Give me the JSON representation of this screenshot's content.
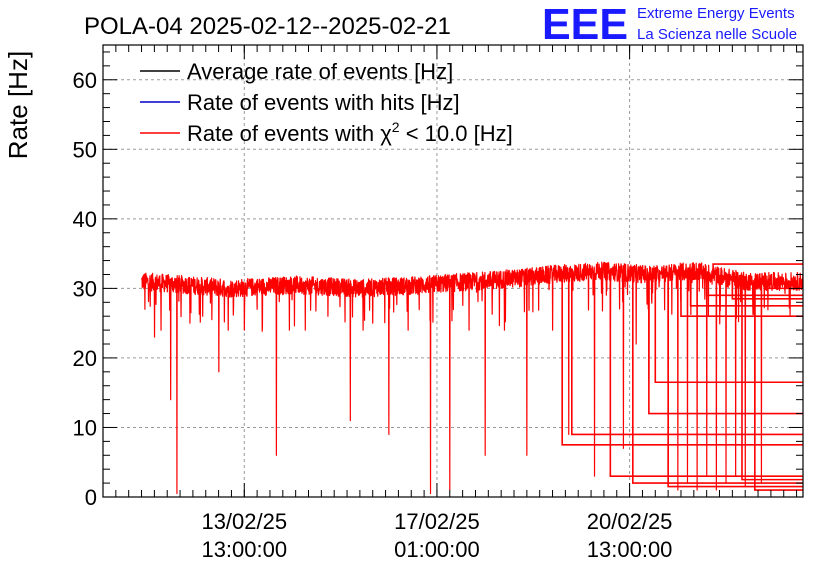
{
  "chart_data": {
    "type": "line",
    "title": "POLA-04 2025-02-12--2025-02-21",
    "ylabel": "Rate [Hz]",
    "xlabel": "",
    "ylim": [
      0,
      65
    ],
    "yticks": [
      0,
      10,
      20,
      30,
      40,
      50,
      60
    ],
    "xlim_hours": [
      0,
      218
    ],
    "xtick_labels": [
      {
        "hour": 44,
        "date": "13/02/25",
        "time": "13:00:00"
      },
      {
        "hour": 104,
        "date": "17/02/25",
        "time": "01:00:00"
      },
      {
        "hour": 164,
        "date": "20/02/25",
        "time": "13:00:00"
      }
    ],
    "grid": true,
    "legend_position": "top-left",
    "legend": [
      {
        "label": "Average rate of events [Hz]",
        "color": "#000000"
      },
      {
        "label": "Rate of events with hits [Hz]",
        "color": "#0000cc"
      },
      {
        "label_prefix": "Rate of events with ",
        "label_symbol": "χ",
        "label_sup": "2",
        "label_suffix": " < 10.0 [Hz]",
        "color": "#ff0000"
      }
    ],
    "series": [
      {
        "name": "Rate of events with chi2 < 10.0 [Hz]",
        "color": "#ff0000",
        "baseline_points": [
          [
            12,
            31
          ],
          [
            40,
            30
          ],
          [
            60,
            30.5
          ],
          [
            80,
            30
          ],
          [
            100,
            30.5
          ],
          [
            115,
            31
          ],
          [
            130,
            31.5
          ],
          [
            140,
            32
          ],
          [
            155,
            32.5
          ],
          [
            170,
            32
          ],
          [
            185,
            32.5
          ],
          [
            200,
            31
          ],
          [
            218,
            31
          ]
        ],
        "drops": [
          [
            13,
            27
          ],
          [
            16,
            23
          ],
          [
            18,
            24
          ],
          [
            21,
            14
          ],
          [
            23,
            0.5
          ],
          [
            27,
            25
          ],
          [
            31,
            26
          ],
          [
            36,
            18
          ],
          [
            39,
            24
          ],
          [
            44,
            24
          ],
          [
            48,
            27
          ],
          [
            54,
            6
          ],
          [
            58,
            24
          ],
          [
            63,
            24
          ],
          [
            70,
            26
          ],
          [
            77,
            11
          ],
          [
            81,
            24
          ],
          [
            84,
            25
          ],
          [
            89,
            9
          ],
          [
            95,
            24
          ],
          [
            102,
            0.5
          ],
          [
            108,
            1
          ],
          [
            114,
            24
          ],
          [
            119,
            6
          ],
          [
            125,
            24
          ],
          [
            132,
            6
          ],
          [
            140,
            24
          ],
          [
            145,
            9
          ],
          [
            153,
            3
          ],
          [
            158,
            25
          ],
          [
            162,
            7
          ],
          [
            166,
            22
          ],
          [
            170,
            17
          ],
          [
            176,
            2
          ],
          [
            179,
            1
          ],
          [
            182,
            2
          ],
          [
            185,
            1
          ],
          [
            188,
            3
          ],
          [
            191,
            1
          ],
          [
            194,
            2
          ],
          [
            197,
            3
          ],
          [
            200,
            1.5
          ],
          [
            203,
            8
          ],
          [
            205,
            2
          ]
        ],
        "flat_segments": [
          [
            143,
            218,
            7.5
          ],
          [
            146,
            218,
            9
          ],
          [
            158,
            218,
            3
          ],
          [
            165,
            218,
            2
          ],
          [
            170,
            218,
            12
          ],
          [
            172,
            218,
            16.5
          ],
          [
            176,
            218,
            1.5
          ],
          [
            180,
            218,
            26
          ],
          [
            183,
            218,
            27.5
          ],
          [
            188,
            218,
            29
          ],
          [
            190,
            218,
            33.5
          ],
          [
            196,
            218,
            28.5
          ],
          [
            199,
            218,
            2.5
          ],
          [
            203,
            218,
            1
          ],
          [
            206,
            218,
            30
          ]
        ]
      }
    ]
  },
  "logo": {
    "text": "EEE",
    "line1": "Extreme Energy Events",
    "line2": "La Scienza nelle Scuole"
  },
  "colors": {
    "accent_blue": "#1a1aff",
    "series_red": "#ff0000"
  }
}
